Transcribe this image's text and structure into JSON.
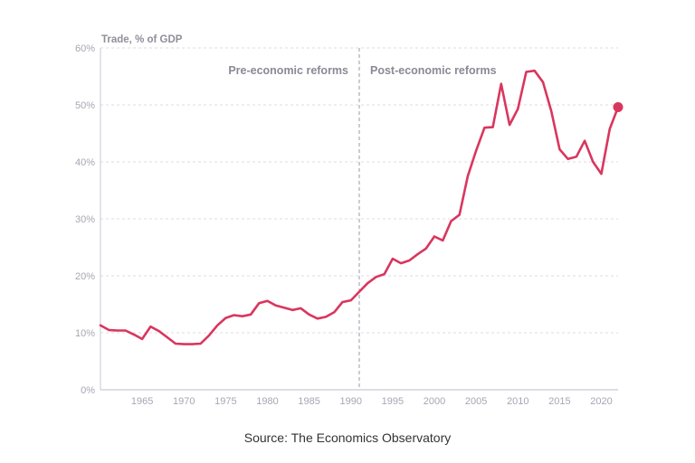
{
  "chart_data": {
    "type": "line",
    "title": "",
    "ylabel": "Trade, % of GDP",
    "xlabel": "",
    "ylim": [
      0,
      60
    ],
    "xlim": [
      1960,
      2022
    ],
    "yticks": [
      0,
      10,
      20,
      30,
      40,
      50,
      60
    ],
    "ytick_labels": [
      "0%",
      "10%",
      "20%",
      "30%",
      "40%",
      "50%",
      "60%"
    ],
    "xticks": [
      1965,
      1970,
      1975,
      1980,
      1985,
      1990,
      1995,
      2000,
      2005,
      2010,
      2015,
      2020
    ],
    "xtick_labels": [
      "1965",
      "1970",
      "1975",
      "1980",
      "1985",
      "1990",
      "1995",
      "2000",
      "2005",
      "2010",
      "2015",
      "2020"
    ],
    "grid": true,
    "divider_year": 1991,
    "annotations": {
      "pre": "Pre-economic reforms",
      "post": "Post-economic reforms"
    },
    "line_color": "#d9365e",
    "grid_color": "#dedee6",
    "label_color": "#a6a6b4",
    "series": [
      {
        "x": [
          1960,
          1961,
          1962,
          1963,
          1964,
          1965,
          1966,
          1967,
          1968,
          1969,
          1970,
          1971,
          1972,
          1973,
          1974,
          1975,
          1976,
          1977,
          1978,
          1979,
          1980,
          1981,
          1982,
          1983,
          1984,
          1985,
          1986,
          1987,
          1988,
          1989,
          1990,
          1991,
          1992,
          1993,
          1994,
          1995,
          1996,
          1997,
          1998,
          1999,
          2000,
          2001,
          2002,
          2003,
          2004,
          2005,
          2006,
          2007,
          2008,
          2009,
          2010,
          2011,
          2012,
          2013,
          2014,
          2015,
          2016,
          2017,
          2018,
          2019,
          2020,
          2021,
          2022
        ],
        "values": [
          11.3,
          10.5,
          10.4,
          10.4,
          9.7,
          8.9,
          11.1,
          10.3,
          9.2,
          8.1,
          8.0,
          8.0,
          8.1,
          9.5,
          11.3,
          12.6,
          13.1,
          12.9,
          13.2,
          15.2,
          15.6,
          14.8,
          14.4,
          14.0,
          14.3,
          13.2,
          12.5,
          12.8,
          13.6,
          15.4,
          15.7,
          17.2,
          18.7,
          19.8,
          20.3,
          23.0,
          22.2,
          22.7,
          23.8,
          24.8,
          26.9,
          26.2,
          29.6,
          30.7,
          37.5,
          42.0,
          46.0,
          46.1,
          53.7,
          46.5,
          49.3,
          55.8,
          56.0,
          54.0,
          48.9,
          42.2,
          40.5,
          40.9,
          43.7,
          40.0,
          37.9,
          45.8,
          49.6
        ]
      }
    ]
  },
  "source": "Source: The Economics Observatory"
}
